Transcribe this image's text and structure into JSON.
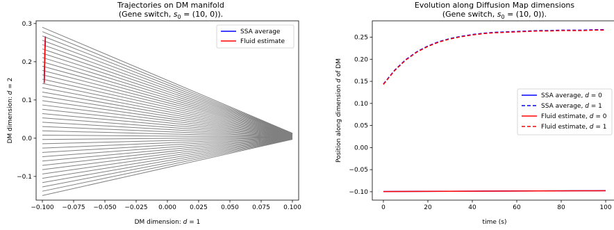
{
  "chart_data": [
    {
      "type": "line",
      "title": "Trajectories on DM manifold",
      "subtitle_pre": "(Gene switch, ",
      "subtitle_sym": "s",
      "subtitle_sub": "0",
      "subtitle_post": " = (10, 0)).",
      "xlabel_pre": "DM dimension: ",
      "xlabel_var": "d",
      "xlabel_post": " = 1",
      "ylabel_pre": "DM dimension: ",
      "ylabel_var": "d",
      "ylabel_post": " = 2",
      "xlim": [
        -0.105,
        0.105
      ],
      "ylim": [
        -0.162,
        0.307
      ],
      "xticks": [
        -0.1,
        -0.075,
        -0.05,
        -0.025,
        0.0,
        0.025,
        0.05,
        0.075,
        0.1
      ],
      "xtick_labels": [
        "−0.100",
        "−0.075",
        "−0.050",
        "−0.025",
        "0.000",
        "0.025",
        "0.050",
        "0.075",
        "0.100"
      ],
      "yticks": [
        -0.1,
        0.0,
        0.1,
        0.2,
        0.3
      ],
      "ytick_labels": [
        "−0.1",
        "0.0",
        "0.1",
        "0.2",
        "0.3"
      ],
      "grid": false,
      "legend_position": "top-right",
      "trajectory_bundle": {
        "color": "#808080",
        "count": 40,
        "start_x": -0.1,
        "start_y_range": [
          -0.15,
          0.29
        ],
        "end_x": 0.1,
        "end_y_range": [
          -0.003,
          0.013
        ]
      },
      "series": [
        {
          "name": "SSA average",
          "color": "#0000ff",
          "x": [
            -0.0985,
            -0.0982,
            -0.0979,
            -0.0977,
            -0.0976
          ],
          "y": [
            0.145,
            0.195,
            0.235,
            0.255,
            0.266
          ]
        },
        {
          "name": "Fluid estimate",
          "color": "#ff0000",
          "x": [
            -0.0985,
            -0.0982,
            -0.0979,
            -0.0977,
            -0.0976
          ],
          "y": [
            0.144,
            0.194,
            0.234,
            0.254,
            0.265
          ]
        }
      ]
    },
    {
      "type": "line",
      "title": "Evolution along Diffusion Map dimensions",
      "subtitle_pre": "(Gene switch, ",
      "subtitle_sym": "s",
      "subtitle_sub": "0",
      "subtitle_post": " = (10, 0)).",
      "xlabel": "time (s)",
      "ylabel_pre": "Position along dimension ",
      "ylabel_var": "d",
      "ylabel_post": " of DM",
      "xlim": [
        -5,
        105
      ],
      "ylim": [
        -0.119,
        0.287
      ],
      "xticks": [
        0,
        20,
        40,
        60,
        80,
        100
      ],
      "xtick_labels": [
        "0",
        "20",
        "40",
        "60",
        "80",
        "100"
      ],
      "yticks": [
        -0.1,
        -0.05,
        0.0,
        0.05,
        0.1,
        0.15,
        0.2,
        0.25
      ],
      "ytick_labels": [
        "−0.10",
        "−0.05",
        "0.00",
        "0.05",
        "0.10",
        "0.15",
        "0.20",
        "0.25"
      ],
      "grid": false,
      "legend_position": "center-right",
      "x": [
        0,
        5,
        10,
        15,
        20,
        25,
        30,
        35,
        40,
        45,
        50,
        55,
        60,
        65,
        70,
        75,
        80,
        85,
        90,
        95,
        100
      ],
      "series": [
        {
          "name_pre": "SSA average, ",
          "name_var": "d",
          "name_post": " = 0",
          "color": "#0000ff",
          "dash": "solid",
          "y": [
            -0.0995,
            -0.0994,
            -0.0993,
            -0.0992,
            -0.0991,
            -0.099,
            -0.0989,
            -0.0988,
            -0.0987,
            -0.0986,
            -0.0985,
            -0.0984,
            -0.0983,
            -0.0982,
            -0.0981,
            -0.098,
            -0.0979,
            -0.0978,
            -0.0977,
            -0.0977,
            -0.0976
          ]
        },
        {
          "name_pre": "SSA average, ",
          "name_var": "d",
          "name_post": " = 1",
          "color": "#0000ff",
          "dash": "dashed",
          "y": [
            0.144,
            0.175,
            0.199,
            0.217,
            0.23,
            0.24,
            0.247,
            0.252,
            0.256,
            0.259,
            0.261,
            0.262,
            0.263,
            0.264,
            0.265,
            0.265,
            0.266,
            0.266,
            0.266,
            0.267,
            0.267
          ]
        },
        {
          "name_pre": "Fluid estimate, ",
          "name_var": "d",
          "name_post": " = 0",
          "color": "#ff0000",
          "dash": "solid",
          "y": [
            -0.0996,
            -0.0995,
            -0.0994,
            -0.0993,
            -0.0992,
            -0.0991,
            -0.099,
            -0.0989,
            -0.0988,
            -0.0987,
            -0.0986,
            -0.0985,
            -0.0984,
            -0.0983,
            -0.0982,
            -0.0981,
            -0.098,
            -0.0979,
            -0.0978,
            -0.0978,
            -0.0977
          ]
        },
        {
          "name_pre": "Fluid estimate, ",
          "name_var": "d",
          "name_post": " = 1",
          "color": "#ff0000",
          "dash": "dashed",
          "y": [
            0.143,
            0.174,
            0.198,
            0.216,
            0.229,
            0.239,
            0.246,
            0.251,
            0.255,
            0.258,
            0.26,
            0.261,
            0.262,
            0.263,
            0.264,
            0.264,
            0.265,
            0.265,
            0.265,
            0.266,
            0.266
          ]
        }
      ]
    }
  ]
}
